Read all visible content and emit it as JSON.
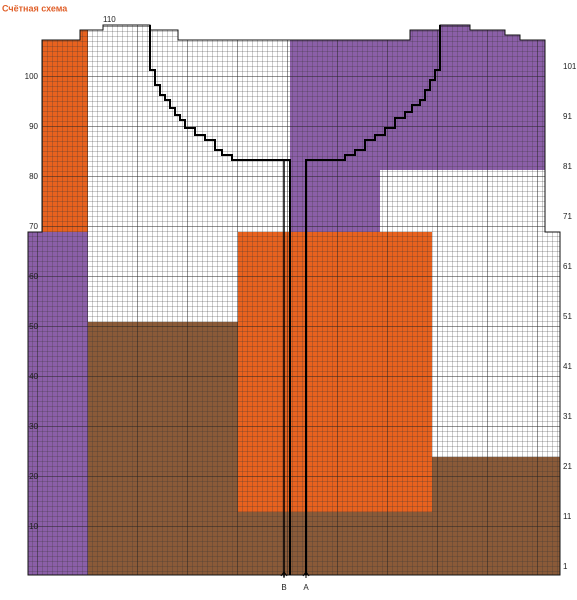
{
  "title": "Счётная схема",
  "left_row_labels": [
    110,
    100,
    90,
    80,
    70,
    60,
    50,
    40,
    30,
    20,
    10
  ],
  "right_row_labels": [
    101,
    91,
    81,
    71,
    61,
    51,
    41,
    31,
    21,
    11,
    1
  ],
  "markers": [
    "B",
    "A"
  ]
}
